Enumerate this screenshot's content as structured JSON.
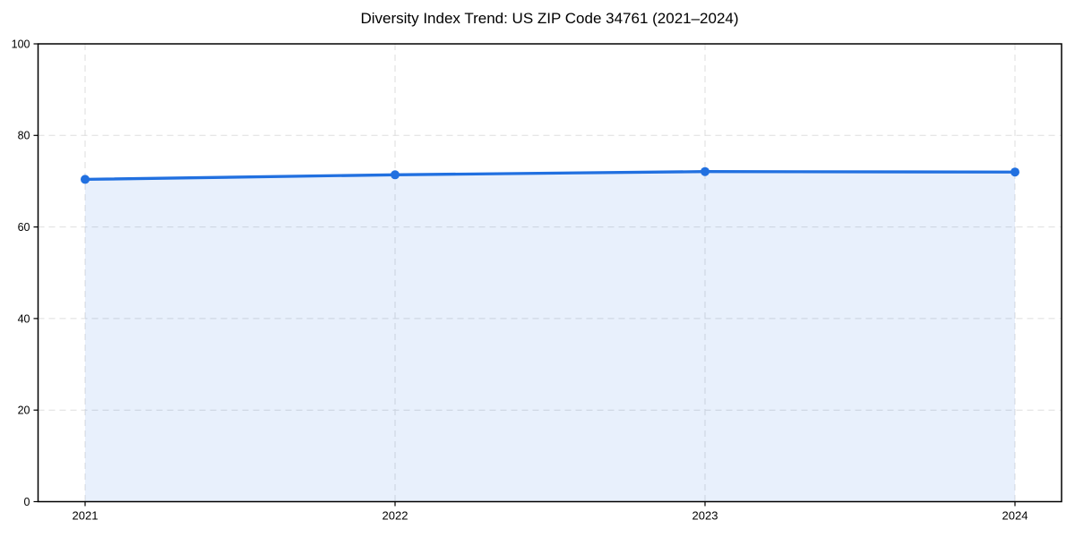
{
  "page": {
    "background": "#ffffff"
  },
  "chart_data": {
    "type": "area",
    "title": "Diversity Index Trend: US ZIP Code 34761 (2021–2024)",
    "x": [
      "2021",
      "2022",
      "2023",
      "2024"
    ],
    "series": [
      {
        "name": "Diversity Index",
        "values": [
          70.4,
          71.4,
          72.1,
          72.0
        ]
      }
    ],
    "xlabel": "",
    "ylabel": "",
    "ylim": [
      0,
      100
    ],
    "yticks": [
      0,
      20,
      40,
      60,
      80,
      100
    ],
    "grid": true,
    "grid_dashed": true,
    "legend_position": "none",
    "colors": {
      "line": "#2170e0",
      "marker": "#2170e0",
      "fill": "#2170e0",
      "fill_opacity": 0.1,
      "grid": "#dedede",
      "spine": "#000000",
      "text": "#000000"
    }
  }
}
